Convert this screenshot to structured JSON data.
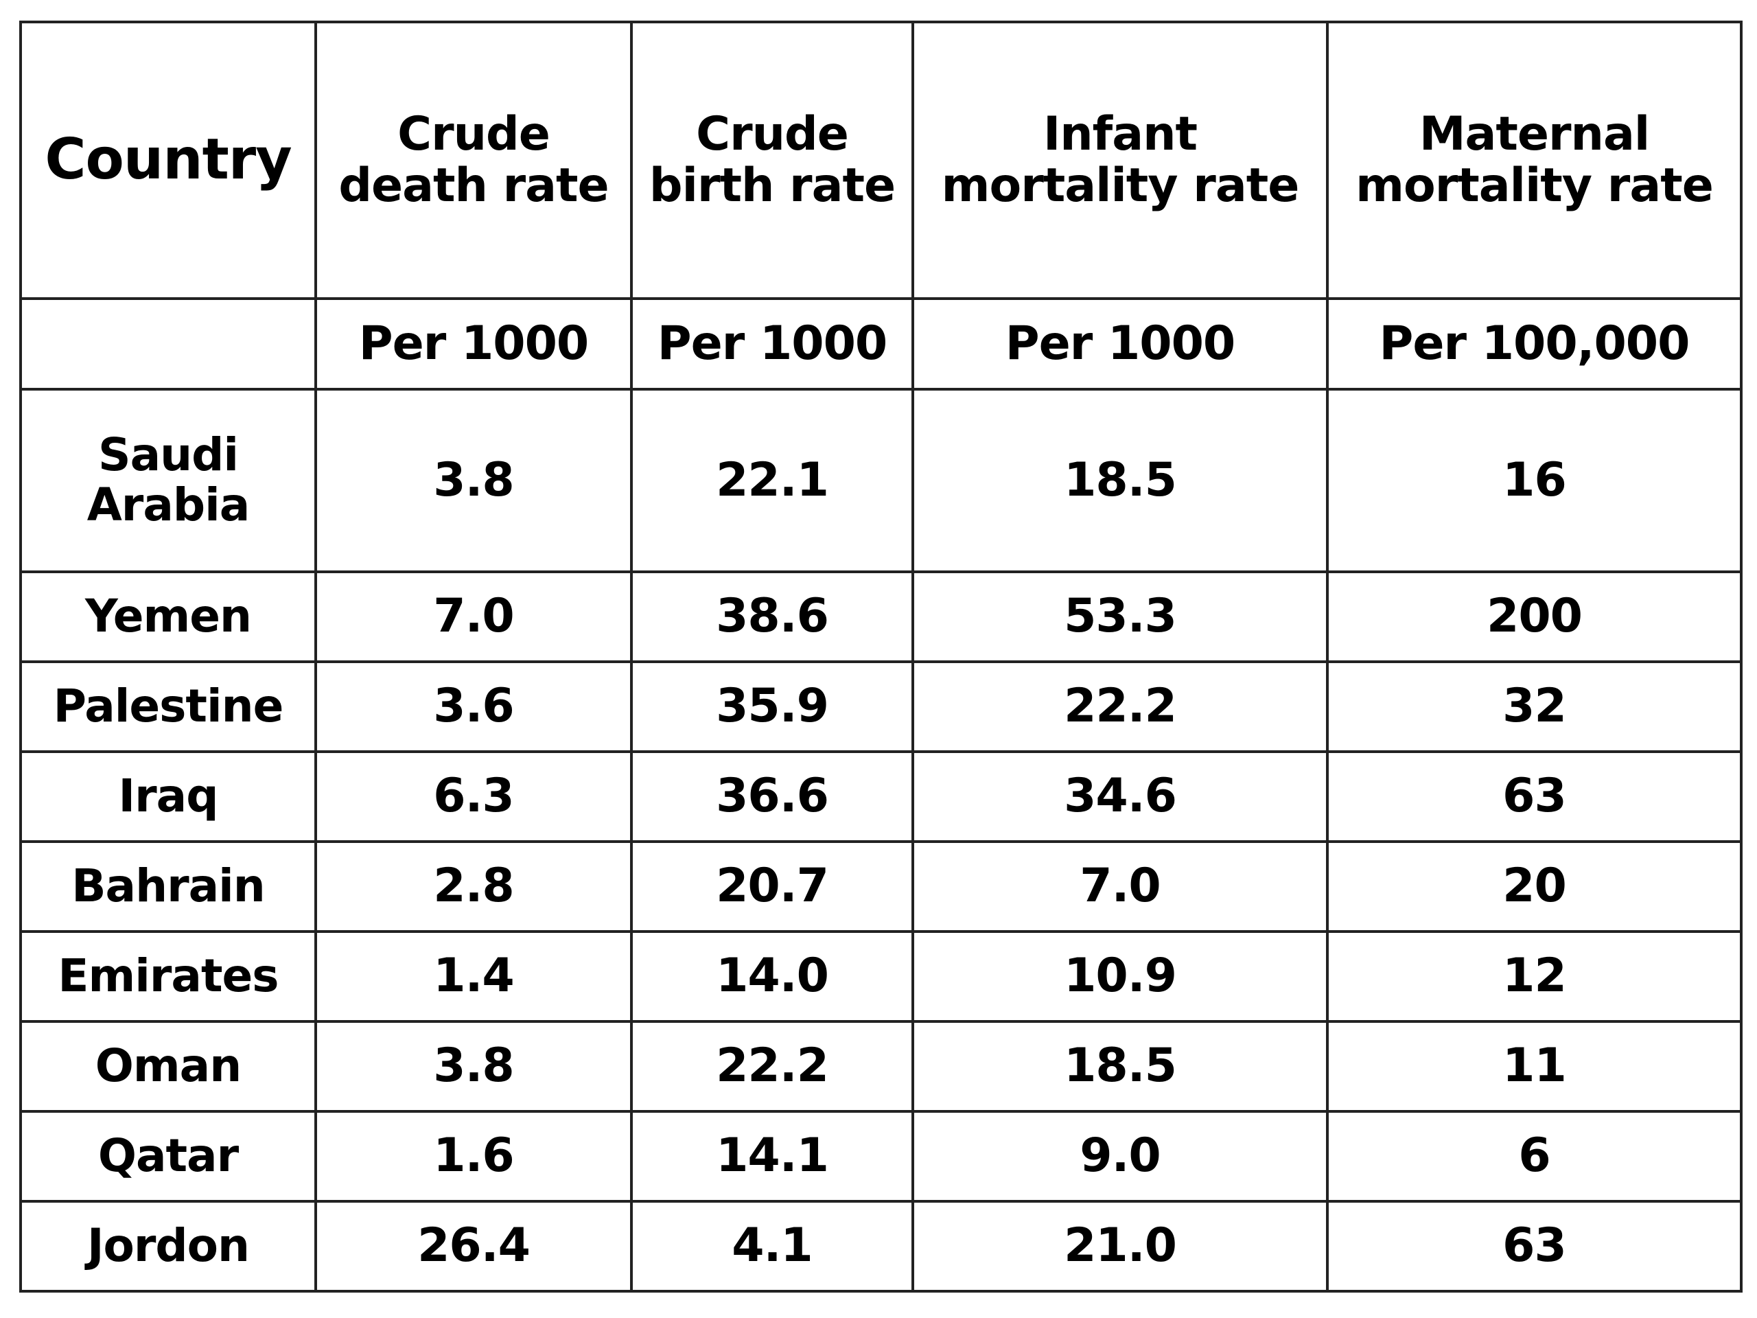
{
  "table": {
    "headers": {
      "country": "Country",
      "crude_death_rate": [
        "Crude",
        "death rate"
      ],
      "crude_birth_rate": [
        "Crude",
        "birth rate"
      ],
      "infant_mortality_rate": [
        "Infant",
        "mortality rate"
      ],
      "maternal_mortality_rate": [
        "Maternal",
        "mortality rate"
      ]
    },
    "units": {
      "country": "",
      "crude_death_rate": "Per 1000",
      "crude_birth_rate": "Per 1000",
      "infant_mortality_rate": "Per 1000",
      "maternal_mortality_rate": "Per 100,000"
    },
    "rows": [
      {
        "country": [
          "Saudi",
          "Arabia"
        ],
        "crude_death_rate": "3.8",
        "crude_birth_rate": "22.1",
        "infant_mortality_rate": "18.5",
        "maternal_mortality_rate": "16"
      },
      {
        "country": [
          "Yemen"
        ],
        "crude_death_rate": "7.0",
        "crude_birth_rate": "38.6",
        "infant_mortality_rate": "53.3",
        "maternal_mortality_rate": "200"
      },
      {
        "country": [
          "Palestine"
        ],
        "crude_death_rate": "3.6",
        "crude_birth_rate": "35.9",
        "infant_mortality_rate": "22.2",
        "maternal_mortality_rate": "32"
      },
      {
        "country": [
          "Iraq"
        ],
        "crude_death_rate": "6.3",
        "crude_birth_rate": "36.6",
        "infant_mortality_rate": "34.6",
        "maternal_mortality_rate": "63"
      },
      {
        "country": [
          "Bahrain"
        ],
        "crude_death_rate": "2.8",
        "crude_birth_rate": "20.7",
        "infant_mortality_rate": "7.0",
        "maternal_mortality_rate": "20"
      },
      {
        "country": [
          "Emirates"
        ],
        "crude_death_rate": "1.4",
        "crude_birth_rate": "14.0",
        "infant_mortality_rate": "10.9",
        "maternal_mortality_rate": "12"
      },
      {
        "country": [
          "Oman"
        ],
        "crude_death_rate": "3.8",
        "crude_birth_rate": "22.2",
        "infant_mortality_rate": "18.5",
        "maternal_mortality_rate": "11"
      },
      {
        "country": [
          "Qatar"
        ],
        "crude_death_rate": "1.6",
        "crude_birth_rate": "14.1",
        "infant_mortality_rate": "9.0",
        "maternal_mortality_rate": "6"
      },
      {
        "country": [
          "Jordon"
        ],
        "crude_death_rate": "26.4",
        "crude_birth_rate": "4.1",
        "infant_mortality_rate": "21.0",
        "maternal_mortality_rate": "63"
      }
    ]
  }
}
